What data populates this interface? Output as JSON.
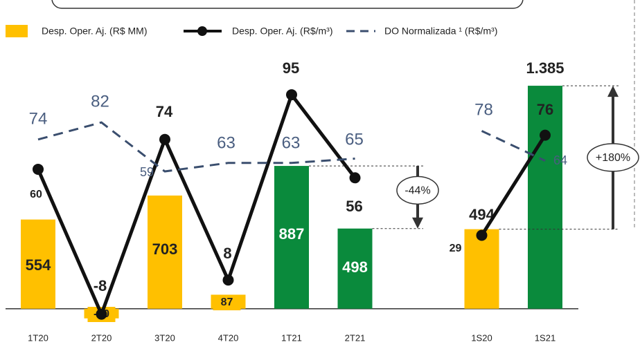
{
  "chart_data": {
    "type": "combo",
    "categories": [
      "1T20",
      "2T20",
      "3T20",
      "4T20",
      "1T21",
      "2T21",
      "1S20",
      "1S21"
    ],
    "ylim": [
      -100,
      1660
    ],
    "y2lim": [
      -13,
      120
    ],
    "series": [
      {
        "name": "Desp. Oper. Aj. (R$ MM)",
        "type": "bar",
        "color": "#FFC000",
        "colors": [
          "#FFC000",
          "#FFC000",
          "#FFC000",
          "#FFC000",
          "#0A8A3C",
          "#0A8A3C",
          "#FFC000",
          "#0A8A3C"
        ],
        "values": [
          554,
          -60,
          703,
          87,
          887,
          498,
          494,
          1385
        ],
        "value_labels": [
          "554",
          "-60",
          "703",
          "87",
          "887",
          "498",
          "494",
          "1.385"
        ]
      },
      {
        "name": "Desp. Oper. Aj. (R$/m³)",
        "type": "line",
        "axis": "y2",
        "color": "#111111",
        "values": [
          60,
          -8,
          74,
          8,
          95,
          56,
          29,
          76
        ]
      },
      {
        "name": "DO Normalizada ¹ (R$/m³)",
        "type": "dashed",
        "axis": "y2",
        "color": "#3A4E6E",
        "values": [
          74,
          82,
          59,
          63,
          63,
          65,
          78,
          64
        ]
      }
    ],
    "annotations": [
      "-44%",
      "+180%"
    ]
  }
}
